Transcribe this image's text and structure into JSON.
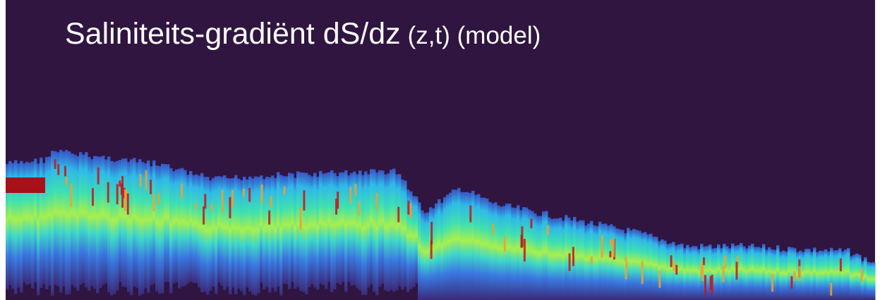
{
  "title": {
    "main": "Saliniteits-gradiënt dS/dz",
    "detail": "(z,t) (model)"
  }
}
